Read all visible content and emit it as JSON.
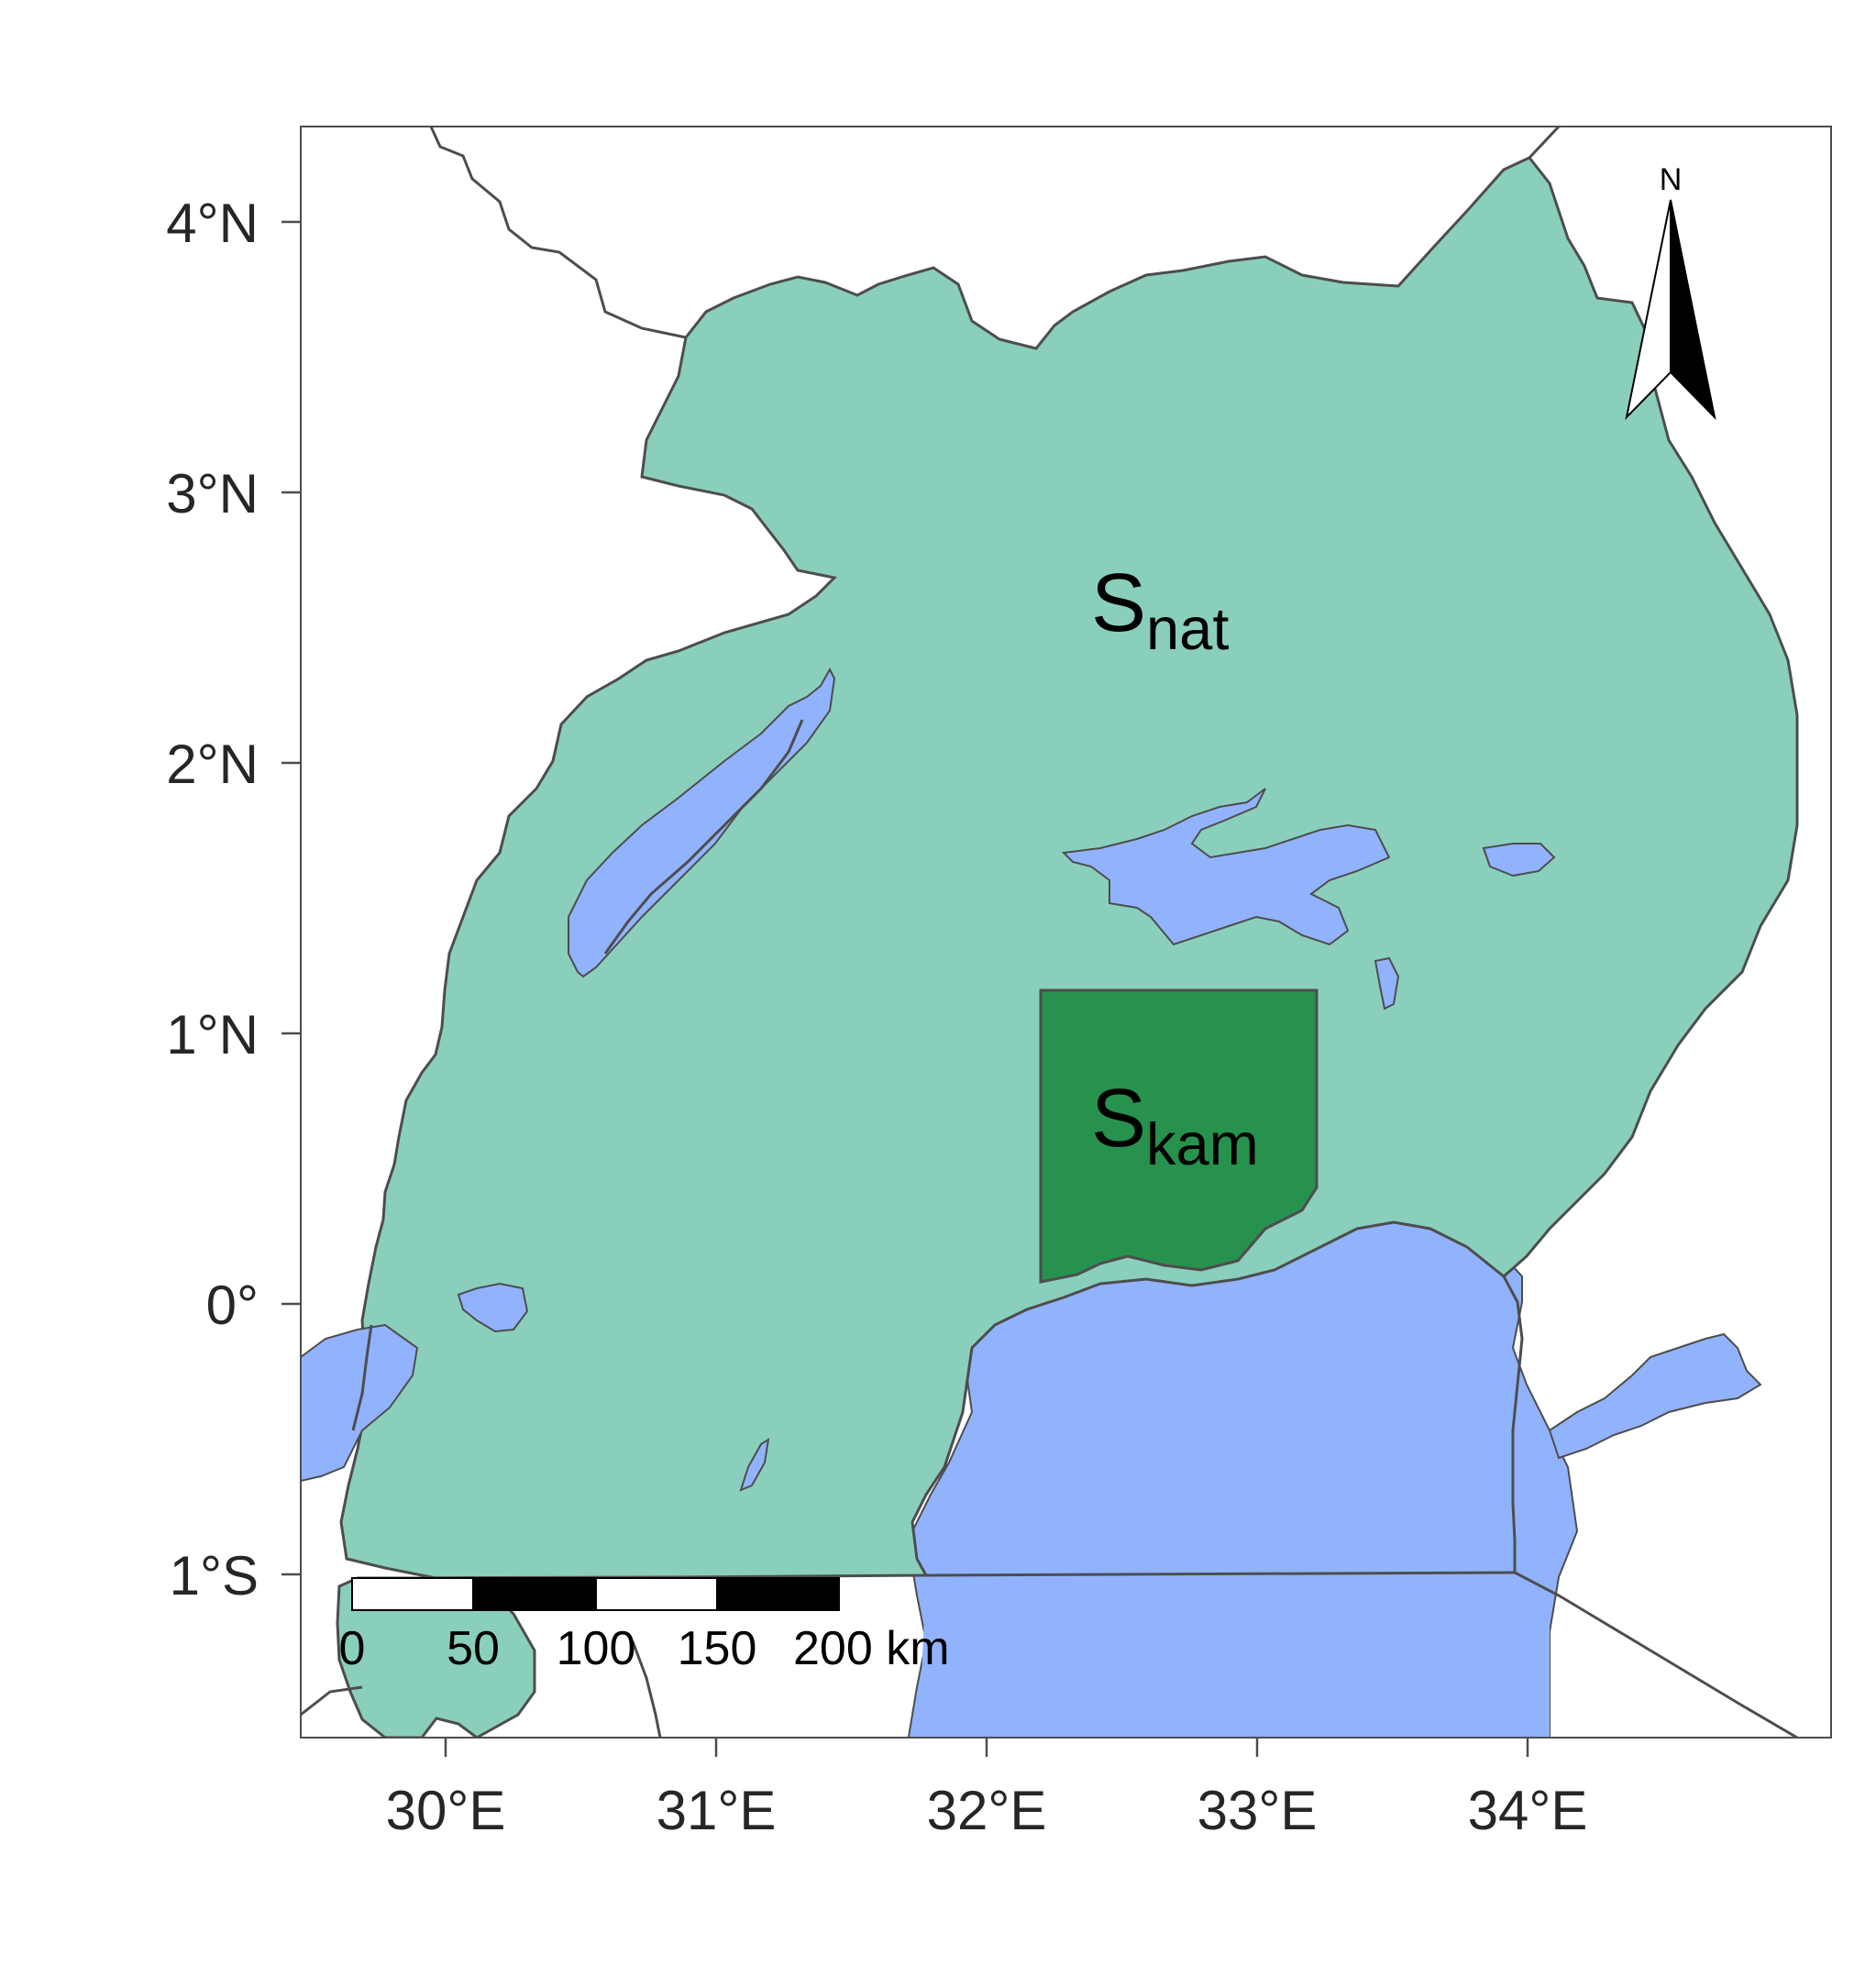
{
  "map": {
    "regions": {
      "national": {
        "label_main": "S",
        "label_sub": "nat"
      },
      "kampala": {
        "label_main": "S",
        "label_sub": "kam"
      }
    },
    "lat_ticks": [
      {
        "value": 4,
        "label": "4°N"
      },
      {
        "value": 3,
        "label": "3°N"
      },
      {
        "value": 2,
        "label": "2°N"
      },
      {
        "value": 1,
        "label": "1°N"
      },
      {
        "value": 0,
        "label": "0°"
      },
      {
        "value": -1,
        "label": "1°S"
      }
    ],
    "lon_ticks": [
      {
        "value": 30,
        "label": "30°E"
      },
      {
        "value": 31,
        "label": "31°E"
      },
      {
        "value": 32,
        "label": "32°E"
      },
      {
        "value": 33,
        "label": "33°E"
      },
      {
        "value": 34,
        "label": "34°E"
      }
    ],
    "north_arrow": {
      "label": "N"
    },
    "scale_bar": {
      "labels": [
        "0",
        "50",
        "100",
        "150",
        "200 km"
      ],
      "unit": "km"
    },
    "colors": {
      "land": "#8ACFBC",
      "kampala": "#26924E",
      "water": "#91B3FE",
      "border": "#4D4D4D"
    }
  }
}
